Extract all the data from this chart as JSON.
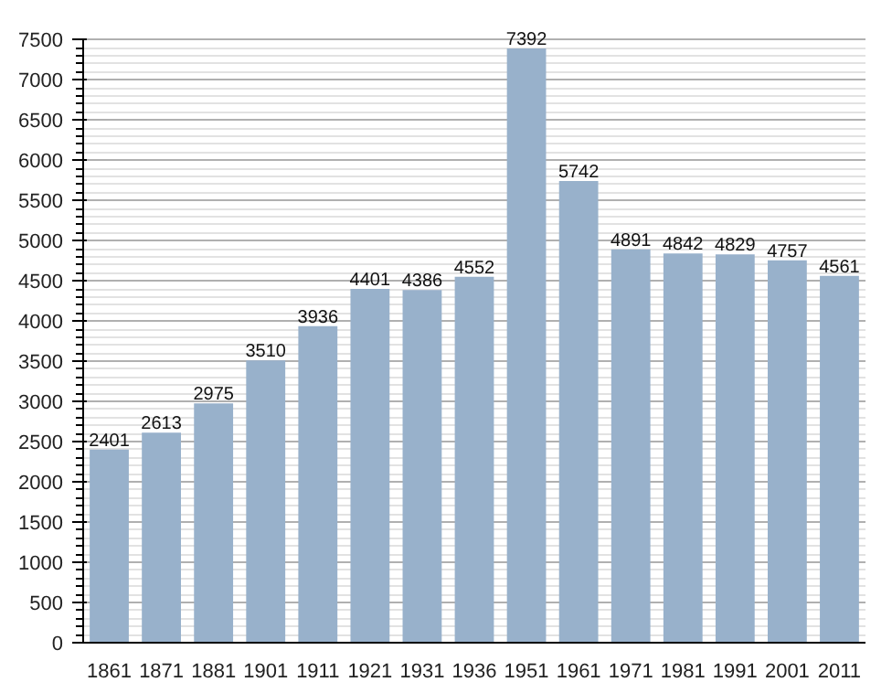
{
  "chart_data": {
    "type": "bar",
    "categories": [
      "1861",
      "1871",
      "1881",
      "1901",
      "1911",
      "1921",
      "1931",
      "1936",
      "1951",
      "1961",
      "1971",
      "1981",
      "1991",
      "2001",
      "2011"
    ],
    "values": [
      2401,
      2613,
      2975,
      3510,
      3936,
      4401,
      4386,
      4552,
      7392,
      5742,
      4891,
      4842,
      4829,
      4757,
      4561
    ],
    "color": "#98b1cb",
    "ylim": [
      0,
      7500
    ],
    "yticks": [
      0,
      500,
      1000,
      1500,
      2000,
      2500,
      3000,
      3500,
      4000,
      4500,
      5000,
      5500,
      6000,
      6500,
      7000,
      7500
    ],
    "grid": "y",
    "data_labels": true
  }
}
